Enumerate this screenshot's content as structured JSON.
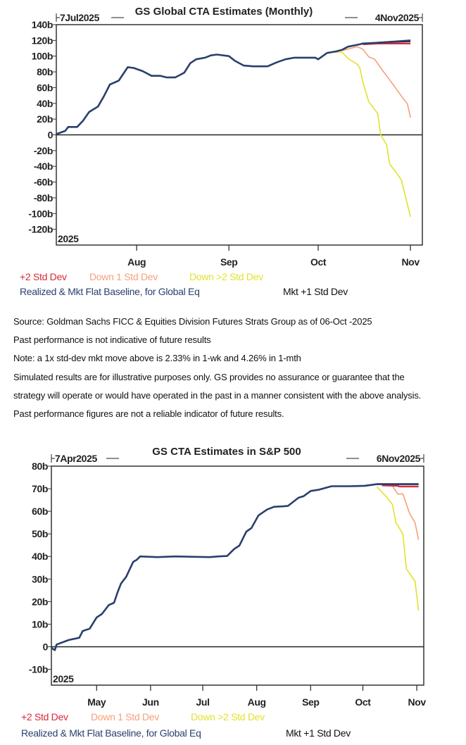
{
  "notes": [
    "Source: Goldman Sachs FICC & Equities Division Futures Strats Group as of 06-Oct -2025",
    "Past performance is not indicative of future results",
    "Note: a 1x std-dev mkt move above is 2.33% in 1-wk and 4.26% in 1-mth",
    "Simulated results are for illustrative purposes only. GS provides no assurance or guarantee that the",
    "strategy will operate or would have operated in the past in a manner consistent with the above analysis.",
    "Past performance figures are not a reliable indicator of future results."
  ],
  "chart_data": [
    {
      "type": "line",
      "title": "GS Global CTA Estimates (Monthly)",
      "start_label": "7Jul2025",
      "end_label": "4Nov2025",
      "year_label": "2025",
      "xlim": [
        "2025-07-05",
        "2025-11-05"
      ],
      "ylim": [
        -140,
        140
      ],
      "yticks": [
        140,
        120,
        100,
        80,
        60,
        40,
        20,
        0,
        -20,
        -40,
        -60,
        -80,
        -100,
        -120
      ],
      "ytick_labels": [
        "140b",
        "120b",
        "100b",
        "80b",
        "60b",
        "40b",
        "20b",
        "0",
        "-20b",
        "-40b",
        "-60b",
        "-80b",
        "-100b",
        "-120b"
      ],
      "xticks": [
        "2025-08-01",
        "2025-09-01",
        "2025-10-01",
        "2025-11-01"
      ],
      "xtick_labels": [
        "Aug",
        "Sep",
        "Oct",
        "Nov"
      ],
      "grid": false,
      "legend_placement": "bottom",
      "series": [
        {
          "name": "Down >2 Std Dev",
          "color": "#e2e22c",
          "points": [
            [
              "2025-10-06",
              105
            ],
            [
              "2025-10-09",
              105
            ],
            [
              "2025-10-11",
              97
            ],
            [
              "2025-10-14",
              90
            ],
            [
              "2025-10-15",
              85
            ],
            [
              "2025-10-16",
              67
            ],
            [
              "2025-10-18",
              42
            ],
            [
              "2025-10-21",
              27
            ],
            [
              "2025-10-22",
              0
            ],
            [
              "2025-10-24",
              -13
            ],
            [
              "2025-10-25",
              -37
            ],
            [
              "2025-10-28",
              -52
            ],
            [
              "2025-10-29",
              -58
            ],
            [
              "2025-11-01",
              -104
            ]
          ]
        },
        {
          "name": "Down 1 Std Dev",
          "color": "#f7a07a",
          "points": [
            [
              "2025-10-09",
              107
            ],
            [
              "2025-10-14",
              112
            ],
            [
              "2025-10-16",
              109
            ],
            [
              "2025-10-18",
              99
            ],
            [
              "2025-10-20",
              96
            ],
            [
              "2025-10-22",
              85
            ],
            [
              "2025-10-25",
              70
            ],
            [
              "2025-10-29",
              49
            ],
            [
              "2025-10-31",
              39
            ],
            [
              "2025-11-01",
              22
            ]
          ]
        },
        {
          "name": "+2 Std Dev",
          "color": "#d8293a",
          "points": [
            [
              "2025-10-16",
              115
            ],
            [
              "2025-10-21",
              116
            ],
            [
              "2025-11-01",
              116
            ]
          ]
        },
        {
          "name": "Mkt +1 Std Dev",
          "color": "#111111",
          "points": [
            [
              "2025-10-21",
              117
            ],
            [
              "2025-10-25",
              118
            ],
            [
              "2025-11-01",
              119
            ]
          ]
        },
        {
          "name": "Realized & Mkt Flat Baseline, for Global Eq",
          "color": "#2b3f6e",
          "points": [
            [
              "2025-07-05",
              1
            ],
            [
              "2025-07-08",
              5
            ],
            [
              "2025-07-09",
              10
            ],
            [
              "2025-07-12",
              10
            ],
            [
              "2025-07-14",
              18
            ],
            [
              "2025-07-16",
              29
            ],
            [
              "2025-07-19",
              36
            ],
            [
              "2025-07-21",
              49
            ],
            [
              "2025-07-23",
              64
            ],
            [
              "2025-07-26",
              69
            ],
            [
              "2025-07-29",
              86
            ],
            [
              "2025-07-31",
              85
            ],
            [
              "2025-08-03",
              81
            ],
            [
              "2025-08-06",
              75
            ],
            [
              "2025-08-09",
              75
            ],
            [
              "2025-08-11",
              73
            ],
            [
              "2025-08-14",
              73
            ],
            [
              "2025-08-17",
              79
            ],
            [
              "2025-08-19",
              91
            ],
            [
              "2025-08-21",
              96
            ],
            [
              "2025-08-24",
              98
            ],
            [
              "2025-08-26",
              101
            ],
            [
              "2025-08-28",
              102
            ],
            [
              "2025-09-01",
              100
            ],
            [
              "2025-09-03",
              94
            ],
            [
              "2025-09-06",
              88
            ],
            [
              "2025-09-09",
              87
            ],
            [
              "2025-09-14",
              87
            ],
            [
              "2025-09-17",
              92
            ],
            [
              "2025-09-20",
              96
            ],
            [
              "2025-09-23",
              98
            ],
            [
              "2025-09-30",
              98
            ],
            [
              "2025-10-01",
              96
            ],
            [
              "2025-10-04",
              104
            ],
            [
              "2025-10-07",
              106
            ],
            [
              "2025-10-09",
              108
            ],
            [
              "2025-10-11",
              112
            ],
            [
              "2025-10-15",
              115
            ],
            [
              "2025-10-16",
              116
            ],
            [
              "2025-10-21",
              117
            ],
            [
              "2025-10-25",
              118
            ],
            [
              "2025-11-01",
              120
            ]
          ]
        }
      ]
    },
    {
      "type": "line",
      "title": "GS CTA Estimates in S&P 500",
      "start_label": "7Apr2025",
      "end_label": "6Nov2025",
      "year_label": "2025",
      "xlim": [
        "2025-04-05",
        "2025-11-05"
      ],
      "ylim": [
        -17,
        80
      ],
      "yticks": [
        80,
        70,
        60,
        50,
        40,
        30,
        20,
        10,
        0,
        -10
      ],
      "ytick_labels": [
        "80b",
        "70b",
        "60b",
        "50b",
        "40b",
        "30b",
        "20b",
        "10b",
        "0",
        "-10b"
      ],
      "xticks": [
        "2025-05-01",
        "2025-06-01",
        "2025-07-01",
        "2025-08-01",
        "2025-09-01",
        "2025-10-01",
        "2025-11-01"
      ],
      "xtick_labels": [
        "May",
        "Jun",
        "Jul",
        "Aug",
        "Sep",
        "Oct",
        "Nov"
      ],
      "grid": false,
      "legend_placement": "bottom",
      "series": [
        {
          "name": "Down >2 Std Dev",
          "color": "#e2e22c",
          "points": [
            [
              "2025-10-09",
              71
            ],
            [
              "2025-10-15",
              66
            ],
            [
              "2025-10-18",
              63
            ],
            [
              "2025-10-20",
              55
            ],
            [
              "2025-10-24",
              50
            ],
            [
              "2025-10-26",
              34.5
            ],
            [
              "2025-10-31",
              29
            ],
            [
              "2025-11-02",
              16
            ]
          ]
        },
        {
          "name": "Down 1 Std Dev",
          "color": "#f7a07a",
          "points": [
            [
              "2025-10-18",
              71.3
            ],
            [
              "2025-10-21",
              67.7
            ],
            [
              "2025-10-24",
              67.7
            ],
            [
              "2025-10-28",
              58.8
            ],
            [
              "2025-10-31",
              55
            ],
            [
              "2025-11-02",
              47.4
            ]
          ]
        },
        {
          "name": "+2 Std Dev",
          "color": "#d8293a",
          "points": [
            [
              "2025-10-12",
              71.5
            ],
            [
              "2025-10-21",
              71.3
            ],
            [
              "2025-10-22",
              71
            ],
            [
              "2025-11-02",
              71
            ]
          ]
        },
        {
          "name": "Mkt +1 Std Dev",
          "color": "#111111",
          "points": [
            [
              "2025-10-09",
              72
            ],
            [
              "2025-11-02",
              72
            ]
          ]
        },
        {
          "name": "Realized & Mkt Flat Baseline, for Global Eq",
          "color": "#2b3f6e",
          "points": [
            [
              "2025-04-05",
              -0.5
            ],
            [
              "2025-04-07",
              -1.5
            ],
            [
              "2025-04-08",
              1
            ],
            [
              "2025-04-15",
              3
            ],
            [
              "2025-04-21",
              4
            ],
            [
              "2025-04-23",
              7
            ],
            [
              "2025-04-27",
              8
            ],
            [
              "2025-05-01",
              13
            ],
            [
              "2025-05-04",
              14.5
            ],
            [
              "2025-05-08",
              18.5
            ],
            [
              "2025-05-11",
              19.5
            ],
            [
              "2025-05-13",
              24
            ],
            [
              "2025-05-15",
              28
            ],
            [
              "2025-05-18",
              31
            ],
            [
              "2025-05-22",
              37.6
            ],
            [
              "2025-05-24",
              38.5
            ],
            [
              "2025-05-26",
              40
            ],
            [
              "2025-06-05",
              39.7
            ],
            [
              "2025-06-15",
              40
            ],
            [
              "2025-07-05",
              39.7
            ],
            [
              "2025-07-10",
              40
            ],
            [
              "2025-07-15",
              40.2
            ],
            [
              "2025-07-19",
              43.3
            ],
            [
              "2025-07-22",
              44.8
            ],
            [
              "2025-07-26",
              51
            ],
            [
              "2025-07-29",
              52.6
            ],
            [
              "2025-08-02",
              58.2
            ],
            [
              "2025-08-07",
              60.8
            ],
            [
              "2025-08-11",
              62
            ],
            [
              "2025-08-16",
              62.2
            ],
            [
              "2025-08-19",
              62.4
            ],
            [
              "2025-08-25",
              66
            ],
            [
              "2025-08-28",
              66.7
            ],
            [
              "2025-09-01",
              69
            ],
            [
              "2025-09-06",
              69.6
            ],
            [
              "2025-09-13",
              71.1
            ],
            [
              "2025-09-23",
              71.1
            ],
            [
              "2025-10-02",
              71.3
            ],
            [
              "2025-10-09",
              72
            ],
            [
              "2025-11-02",
              72
            ]
          ]
        }
      ]
    }
  ]
}
